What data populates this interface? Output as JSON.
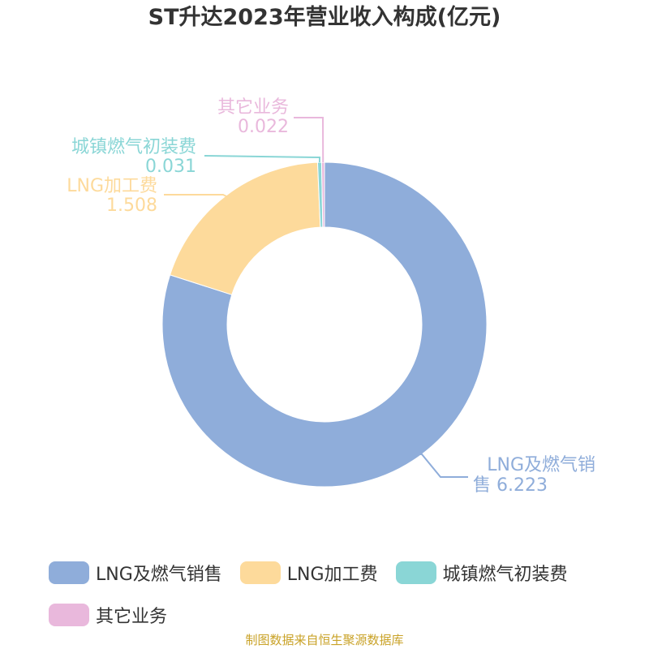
{
  "title": "ST升达2023年营业收入构成(亿元)",
  "source": "制图数据来自恒生聚源数据库",
  "chart_data": {
    "type": "pie",
    "donut": true,
    "title": "ST升达2023年营业收入构成(亿元)",
    "legend_position": "bottom",
    "series": [
      {
        "name": "LNG及燃气销售",
        "value": 6.223,
        "value_label": "6.223",
        "color": "#8fadda"
      },
      {
        "name": "LNG加工费",
        "value": 1.508,
        "value_label": "1.508",
        "color": "#fdda9b"
      },
      {
        "name": "城镇燃气初装费",
        "value": 0.031,
        "value_label": "0.031",
        "color": "#8ad6d6"
      },
      {
        "name": "其它业务",
        "value": 0.022,
        "value_label": "0.022",
        "color": "#e9b8dc"
      }
    ]
  }
}
